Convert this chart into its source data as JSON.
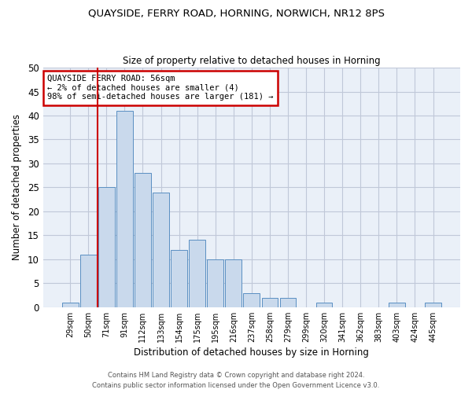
{
  "title1": "QUAYSIDE, FERRY ROAD, HORNING, NORWICH, NR12 8PS",
  "title2": "Size of property relative to detached houses in Horning",
  "xlabel": "Distribution of detached houses by size in Horning",
  "ylabel": "Number of detached properties",
  "annotation_title": "QUAYSIDE FERRY ROAD: 56sqm",
  "annotation_line2": "← 2% of detached houses are smaller (4)",
  "annotation_line3": "98% of semi-detached houses are larger (181) →",
  "bar_values": [
    1,
    11,
    25,
    41,
    28,
    24,
    12,
    14,
    10,
    10,
    3,
    2,
    2,
    0,
    1,
    0,
    0,
    0,
    1,
    0,
    1
  ],
  "bar_labels": [
    "29sqm",
    "50sqm",
    "71sqm",
    "91sqm",
    "112sqm",
    "133sqm",
    "154sqm",
    "175sqm",
    "195sqm",
    "216sqm",
    "237sqm",
    "258sqm",
    "279sqm",
    "299sqm",
    "320sqm",
    "341sqm",
    "362sqm",
    "383sqm",
    "403sqm",
    "424sqm",
    "445sqm"
  ],
  "bar_color": "#c9d9ec",
  "bar_edge_color": "#5a8fc2",
  "vline_color": "#cc0000",
  "annotation_box_color": "#cc0000",
  "ylim": [
    0,
    50
  ],
  "yticks": [
    0,
    5,
    10,
    15,
    20,
    25,
    30,
    35,
    40,
    45,
    50
  ],
  "grid_color": "#c0c8d8",
  "bg_color": "#eaf0f8",
  "footer1": "Contains HM Land Registry data © Crown copyright and database right 2024.",
  "footer2": "Contains public sector information licensed under the Open Government Licence v3.0."
}
